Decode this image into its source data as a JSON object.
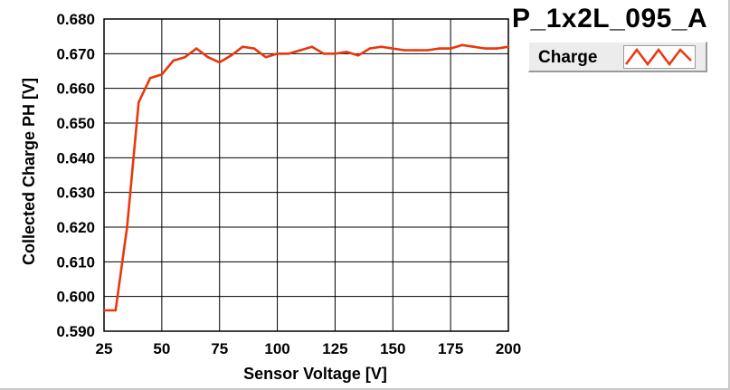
{
  "chart_data": {
    "type": "line",
    "title": "P_1x2L_095_A",
    "xlabel": "Sensor Voltage [V]",
    "ylabel": "Collected Charge PH [V]",
    "xlim": [
      25,
      200
    ],
    "ylim": [
      0.59,
      0.68
    ],
    "xticks": [
      "25",
      "50",
      "75",
      "100",
      "125",
      "150",
      "175",
      "200"
    ],
    "yticks": [
      "0.590",
      "0.600",
      "0.610",
      "0.620",
      "0.630",
      "0.640",
      "0.650",
      "0.660",
      "0.670",
      "0.680"
    ],
    "grid": true,
    "legend_position": "top-right",
    "series": [
      {
        "name": "Charge",
        "color": "#e8380d",
        "x": [
          25,
          30,
          35,
          40,
          45,
          50,
          55,
          60,
          65,
          70,
          75,
          80,
          85,
          90,
          95,
          100,
          105,
          110,
          115,
          120,
          125,
          130,
          135,
          140,
          145,
          150,
          155,
          160,
          165,
          170,
          175,
          180,
          185,
          190,
          195,
          200
        ],
        "y": [
          0.596,
          0.596,
          0.62,
          0.656,
          0.663,
          0.664,
          0.668,
          0.669,
          0.6715,
          0.669,
          0.6675,
          0.6695,
          0.672,
          0.6715,
          0.669,
          0.67,
          0.67,
          0.671,
          0.672,
          0.67,
          0.67,
          0.6705,
          0.6695,
          0.6715,
          0.672,
          0.6715,
          0.671,
          0.671,
          0.671,
          0.6715,
          0.6715,
          0.6725,
          0.672,
          0.6715,
          0.6715,
          0.672
        ]
      }
    ]
  },
  "colors": {
    "plot_background": "#ffffff",
    "grid": "#000000",
    "series": "#e8380d"
  }
}
